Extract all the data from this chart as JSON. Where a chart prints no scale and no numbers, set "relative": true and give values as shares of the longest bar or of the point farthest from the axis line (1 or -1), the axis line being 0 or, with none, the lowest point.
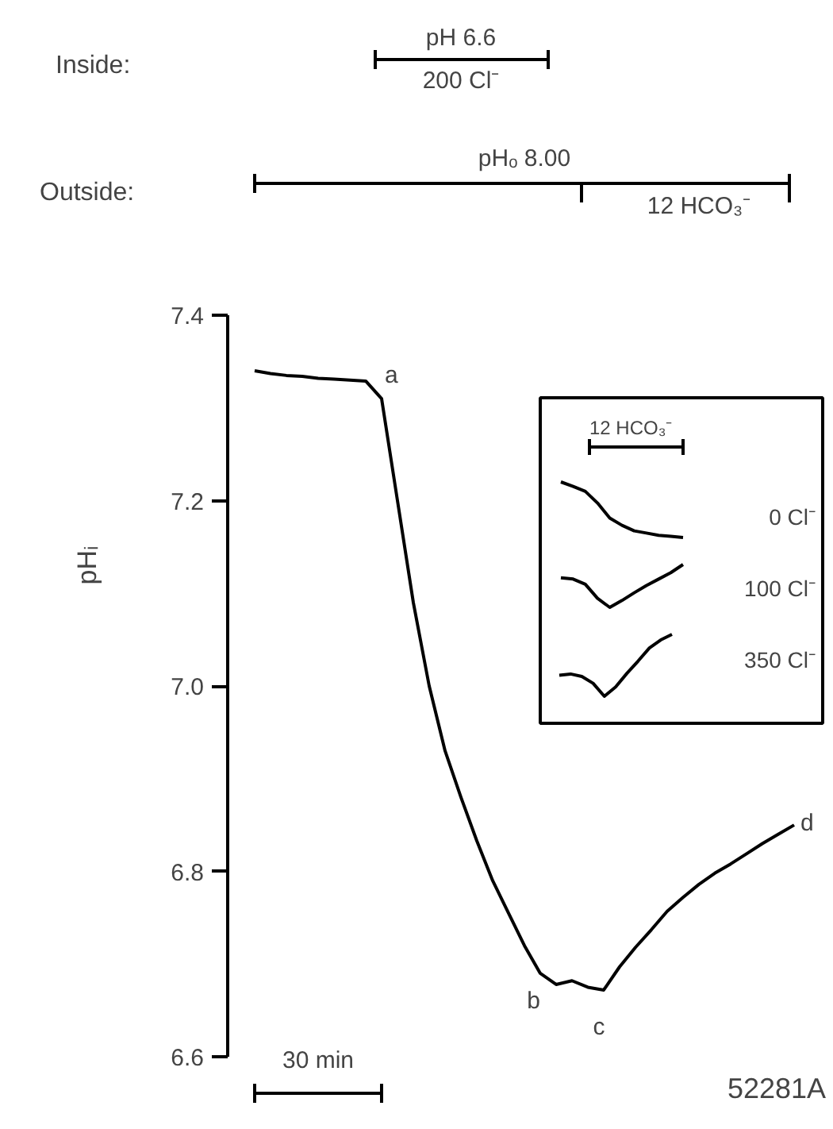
{
  "chart_data": [
    {
      "type": "line",
      "ylabel": "pHᵢ",
      "categories": [
        null,
        null,
        null,
        null,
        null,
        null,
        null,
        null,
        null,
        null,
        null,
        null,
        null,
        null,
        null,
        null,
        null,
        null,
        null,
        null,
        null,
        null,
        null,
        null,
        null,
        null,
        null,
        null,
        null,
        null,
        null,
        null,
        null,
        null,
        null
      ],
      "values": [
        7.34,
        7.337,
        7.335,
        7.334,
        7.332,
        7.331,
        7.33,
        7.329,
        7.31,
        7.2,
        7.09,
        7.0,
        6.93,
        6.88,
        6.833,
        6.79,
        6.755,
        6.72,
        6.69,
        6.678,
        6.682,
        6.675,
        6.672,
        6.697,
        6.718,
        6.737,
        6.757,
        6.772,
        6.786,
        6.798,
        6.808,
        6.819,
        6.83,
        6.84,
        6.85
      ],
      "color": "#000000",
      "ylim": [
        6.6,
        7.4
      ],
      "yticks": [
        {
          "value": 6.6,
          "label": "6.6"
        },
        {
          "value": 6.8,
          "label": "6.8"
        },
        {
          "value": 7.0,
          "label": "7.0"
        },
        {
          "value": 7.2,
          "label": "7.2"
        },
        {
          "value": 7.4,
          "label": "7.4"
        }
      ],
      "tick_labels": "y",
      "grid": false,
      "annotations": [
        "Inside:",
        "pH 6.6",
        "200 Cl⁻",
        "Outside:",
        "pHₒ 8.00",
        "12 HCO₃⁻",
        "30 min",
        "52281A",
        "a",
        "b",
        "c",
        "d"
      ]
    },
    {
      "type": "line",
      "relative": true,
      "categories": [
        null,
        null,
        null,
        null,
        null,
        null,
        null,
        null,
        null,
        null,
        null
      ],
      "annotations": [
        "12 HCO₃⁻"
      ],
      "series": [
        {
          "name": "0 Cl⁻",
          "color": "#000000",
          "values": [
            1,
            0.92,
            0.83,
            0.62,
            0.35,
            0.22,
            0.12,
            0.08,
            0.04,
            0.02,
            0
          ]
        }
      ]
    },
    {
      "type": "line",
      "relative": true,
      "categories": [
        null,
        null,
        null,
        null,
        null,
        null,
        null,
        null,
        null,
        null,
        null
      ],
      "series": [
        {
          "name": "100 Cl⁻",
          "color": "#000000",
          "values": [
            0.69,
            0.66,
            0.54,
            0.21,
            0,
            0.16,
            0.34,
            0.51,
            0.66,
            0.81,
            1
          ]
        }
      ]
    },
    {
      "type": "line",
      "relative": true,
      "categories": [
        null,
        null,
        null,
        null,
        null,
        null,
        null,
        null,
        null,
        null,
        null
      ],
      "series": [
        {
          "name": "350 Cl⁻",
          "color": "#000000",
          "values": [
            0.34,
            0.36,
            0.32,
            0.21,
            0,
            0.15,
            0.37,
            0.57,
            0.78,
            0.91,
            1
          ]
        }
      ]
    }
  ]
}
